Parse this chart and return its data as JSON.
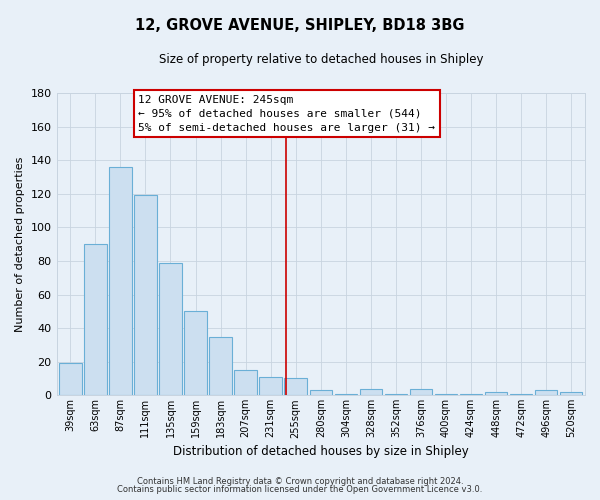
{
  "title": "12, GROVE AVENUE, SHIPLEY, BD18 3BG",
  "subtitle": "Size of property relative to detached houses in Shipley",
  "xlabel": "Distribution of detached houses by size in Shipley",
  "ylabel": "Number of detached properties",
  "bar_labels": [
    "39sqm",
    "63sqm",
    "87sqm",
    "111sqm",
    "135sqm",
    "159sqm",
    "183sqm",
    "207sqm",
    "231sqm",
    "255sqm",
    "280sqm",
    "304sqm",
    "328sqm",
    "352sqm",
    "376sqm",
    "400sqm",
    "424sqm",
    "448sqm",
    "472sqm",
    "496sqm",
    "520sqm"
  ],
  "bar_values": [
    19,
    90,
    136,
    119,
    79,
    50,
    35,
    15,
    11,
    10,
    3,
    1,
    4,
    1,
    4,
    1,
    1,
    2,
    1,
    3,
    2
  ],
  "bar_color": "#ccdff0",
  "bar_edge_color": "#6aafd6",
  "ylim": [
    0,
    180
  ],
  "yticks": [
    0,
    20,
    40,
    60,
    80,
    100,
    120,
    140,
    160,
    180
  ],
  "grid_color": "#c8d4e0",
  "background_color": "#e8f0f8",
  "vline_x": 8.62,
  "vline_color": "#cc0000",
  "annotation_title": "12 GROVE AVENUE: 245sqm",
  "annotation_line1": "← 95% of detached houses are smaller (544)",
  "annotation_line2": "5% of semi-detached houses are larger (31) →",
  "footer1": "Contains HM Land Registry data © Crown copyright and database right 2024.",
  "footer2": "Contains public sector information licensed under the Open Government Licence v3.0."
}
